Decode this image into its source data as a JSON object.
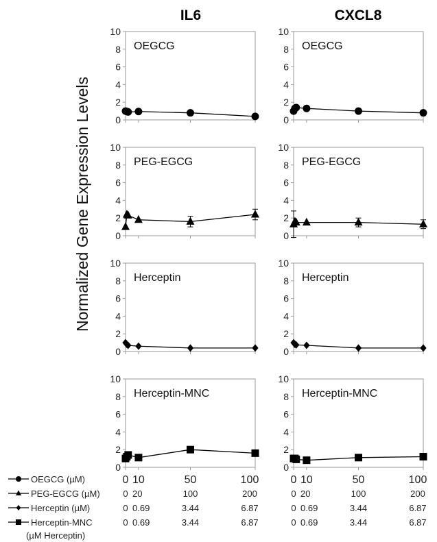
{
  "figure": {
    "y_axis_label": "Normalized Gene Expression Levels",
    "column_titles": [
      "IL6",
      "CXCL8"
    ],
    "row_labels": [
      "OEGCG",
      "PEG-EGCG",
      "Herceptin",
      "Herceptin-MNC"
    ],
    "y_ticks": [
      "0",
      "2",
      "4",
      "6",
      "8",
      "10"
    ],
    "x_ticks": [
      "0",
      "10",
      "50",
      "100"
    ],
    "legend": [
      {
        "label": "OEGCG (µM)",
        "marker": "circle",
        "values": [
          "0",
          "10",
          "50",
          "100"
        ]
      },
      {
        "label": "PEG-EGCG (µM)",
        "marker": "triangle",
        "values": [
          "0",
          "20",
          "100",
          "200"
        ]
      },
      {
        "label": "Herceptin (µM)",
        "marker": "diamond",
        "values": [
          "0",
          "0.69",
          "3.44",
          "6.87"
        ]
      },
      {
        "label": "Herceptin-MNC",
        "label2": "(µM Herceptin)",
        "marker": "square",
        "values": [
          "0",
          "0.69",
          "3.44",
          "6.87"
        ]
      }
    ],
    "colors": {
      "ink": "#000000",
      "axis": "#999999",
      "text": "#222222"
    }
  },
  "chart_data": [
    {
      "type": "line",
      "gene": "IL6",
      "series": [
        {
          "name": "OEGCG",
          "marker": "circle",
          "x": [
            0,
            1,
            2,
            10,
            50,
            100
          ],
          "y": [
            1.0,
            0.95,
            0.9,
            0.95,
            0.8,
            0.4
          ],
          "err": [
            0,
            0,
            0,
            0,
            0,
            0
          ]
        }
      ],
      "ylim": [
        0,
        10
      ],
      "xlim": [
        0,
        100
      ]
    },
    {
      "type": "line",
      "gene": "CXCL8",
      "series": [
        {
          "name": "OEGCG",
          "marker": "circle",
          "x": [
            0,
            1,
            2,
            10,
            50,
            100
          ],
          "y": [
            1.0,
            1.3,
            1.4,
            1.3,
            1.0,
            0.8
          ],
          "err": [
            0,
            0,
            0,
            0,
            0,
            0
          ]
        }
      ],
      "ylim": [
        0,
        10
      ],
      "xlim": [
        0,
        100
      ]
    },
    {
      "type": "line",
      "gene": "IL6",
      "series": [
        {
          "name": "PEG-EGCG",
          "marker": "triangle",
          "x": [
            0,
            1,
            2,
            10,
            50,
            100
          ],
          "y": [
            1.0,
            2.4,
            2.3,
            1.8,
            1.6,
            2.4
          ],
          "err": [
            0,
            0,
            0,
            0,
            0.6,
            0.6
          ]
        }
      ],
      "ylim": [
        0,
        10
      ],
      "xlim": [
        0,
        100
      ]
    },
    {
      "type": "line",
      "gene": "CXCL8",
      "series": [
        {
          "name": "PEG-EGCG",
          "marker": "triangle",
          "x": [
            0,
            1,
            2,
            10,
            50,
            100
          ],
          "y": [
            1.3,
            1.6,
            1.5,
            1.5,
            1.5,
            1.3
          ],
          "err": [
            1.5,
            0,
            0,
            0,
            0.5,
            0.5
          ]
        }
      ],
      "ylim": [
        0,
        10
      ],
      "xlim": [
        0,
        100
      ]
    },
    {
      "type": "line",
      "gene": "IL6",
      "series": [
        {
          "name": "Herceptin",
          "marker": "diamond",
          "x": [
            0,
            1,
            2,
            10,
            50,
            100
          ],
          "y": [
            1.0,
            0.8,
            0.7,
            0.6,
            0.4,
            0.4
          ],
          "err": [
            0,
            0,
            0,
            0,
            0,
            0
          ]
        }
      ],
      "ylim": [
        0,
        10
      ],
      "xlim": [
        0,
        100
      ]
    },
    {
      "type": "line",
      "gene": "CXCL8",
      "series": [
        {
          "name": "Herceptin",
          "marker": "diamond",
          "x": [
            0,
            1,
            2,
            10,
            50,
            100
          ],
          "y": [
            1.0,
            0.8,
            0.75,
            0.7,
            0.4,
            0.4
          ],
          "err": [
            0,
            0,
            0,
            0,
            0,
            0
          ]
        }
      ],
      "ylim": [
        0,
        10
      ],
      "xlim": [
        0,
        100
      ]
    },
    {
      "type": "line",
      "gene": "IL6",
      "series": [
        {
          "name": "Herceptin-MNC",
          "marker": "square",
          "x": [
            0,
            1,
            2,
            10,
            50,
            100
          ],
          "y": [
            1.0,
            1.2,
            1.4,
            1.1,
            2.0,
            1.6
          ],
          "err": [
            0,
            0,
            0,
            0,
            0,
            0
          ]
        }
      ],
      "ylim": [
        0,
        10
      ],
      "xlim": [
        0,
        100
      ]
    },
    {
      "type": "line",
      "gene": "CXCL8",
      "series": [
        {
          "name": "Herceptin-MNC",
          "marker": "square",
          "x": [
            0,
            1,
            2,
            10,
            50,
            100
          ],
          "y": [
            1.0,
            1.0,
            0.9,
            0.8,
            1.1,
            1.2
          ],
          "err": [
            0,
            0,
            0,
            0,
            0,
            0
          ]
        }
      ],
      "ylim": [
        0,
        10
      ],
      "xlim": [
        0,
        100
      ]
    }
  ]
}
